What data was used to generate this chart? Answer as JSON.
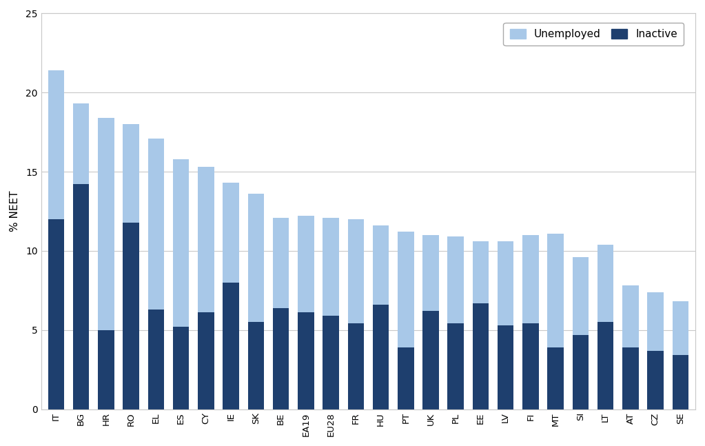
{
  "categories": [
    "IT",
    "BG",
    "HR",
    "RO",
    "EL",
    "ES",
    "CY",
    "IE",
    "SK",
    "BE",
    "EA19",
    "EU28",
    "FR",
    "HU",
    "PT",
    "UK",
    "PL",
    "EE",
    "LV",
    "FI",
    "MT",
    "SI",
    "LT",
    "AT",
    "CZ",
    "SE"
  ],
  "unemployed": [
    9.4,
    5.1,
    13.4,
    6.2,
    10.8,
    10.6,
    9.2,
    6.3,
    8.1,
    5.7,
    6.1,
    6.2,
    6.6,
    5.0,
    7.3,
    4.8,
    5.5,
    3.9,
    5.3,
    5.6,
    7.2,
    4.9,
    4.9,
    3.9,
    3.7,
    3.4
  ],
  "inactive": [
    12.0,
    14.2,
    5.0,
    11.8,
    6.3,
    5.2,
    6.1,
    8.0,
    5.5,
    6.4,
    6.1,
    5.9,
    5.4,
    6.6,
    3.9,
    6.2,
    5.4,
    6.7,
    5.3,
    5.4,
    3.9,
    4.7,
    5.5,
    3.9,
    3.7,
    3.4
  ],
  "color_unemployed": "#a8c8e8",
  "color_inactive": "#1e3f6e",
  "ylabel": "% NEET",
  "ylim": [
    0,
    25
  ],
  "yticks": [
    0,
    5,
    10,
    15,
    20,
    25
  ],
  "legend_unemployed": "Unemployed",
  "legend_inactive": "Inactive",
  "background_color": "#ffffff",
  "grid_color": "#c8c8c8"
}
